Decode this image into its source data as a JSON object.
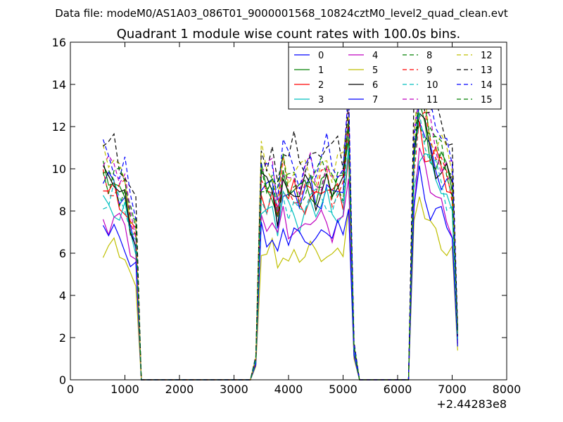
{
  "supertitle": "Data file: modeM0/AS1A03_086T01_9000001568_10824cztM0_level2_quad_clean.evt",
  "chart_data": {
    "type": "line",
    "title": "Quadrant 1 module wise count rates with 100.0s bins.",
    "xlabel": "",
    "ylabel": "",
    "x_offset_label": "+2.44283e8",
    "xlim": [
      0,
      8000
    ],
    "ylim": [
      0,
      16
    ],
    "x_ticks": [
      "0",
      "1000",
      "2000",
      "3000",
      "4000",
      "5000",
      "6000",
      "7000",
      "8000"
    ],
    "y_ticks": [
      "0",
      "2",
      "4",
      "6",
      "8",
      "10",
      "12",
      "14",
      "16"
    ],
    "grid": false,
    "legend_position": "top-right",
    "x": [
      600,
      700,
      800,
      900,
      1000,
      1100,
      1200,
      1300,
      1400,
      1500,
      1600,
      1700,
      1800,
      1900,
      2000,
      2100,
      2200,
      2300,
      2400,
      2500,
      2600,
      2700,
      2800,
      2900,
      3000,
      3100,
      3200,
      3300,
      3400,
      3500,
      3600,
      3700,
      3800,
      3900,
      4000,
      4100,
      4200,
      4300,
      4400,
      4500,
      4600,
      4700,
      4800,
      4900,
      5000,
      5100,
      5200,
      5300,
      5400,
      5500,
      5600,
      5700,
      5800,
      5900,
      6000,
      6100,
      6200,
      6300,
      6400,
      6500,
      6600,
      6700,
      6800,
      6900,
      7000,
      7100
    ],
    "series": [
      {
        "name": "0",
        "color": "#0000ff",
        "dash": "solid",
        "level": 9.3
      },
      {
        "name": "1",
        "color": "#008000",
        "dash": "solid",
        "level": 9.6
      },
      {
        "name": "2",
        "color": "#ff0000",
        "dash": "solid",
        "level": 9.2
      },
      {
        "name": "3",
        "color": "#00bfbf",
        "dash": "solid",
        "level": 8.5
      },
      {
        "name": "4",
        "color": "#bf00bf",
        "dash": "solid",
        "level": 7.8
      },
      {
        "name": "5",
        "color": "#bfbf00",
        "dash": "solid",
        "level": 6.3
      },
      {
        "name": "6",
        "color": "#000000",
        "dash": "solid",
        "level": 9.5
      },
      {
        "name": "7",
        "color": "#0000ff",
        "dash": "solid",
        "level": 7.2
      },
      {
        "name": "8",
        "color": "#008000",
        "dash": "dashed",
        "level": 9.8
      },
      {
        "name": "9",
        "color": "#ff0000",
        "dash": "dashed",
        "level": 9.6
      },
      {
        "name": "10",
        "color": "#00bfbf",
        "dash": "dashed",
        "level": 8.9
      },
      {
        "name": "11",
        "color": "#bf00bf",
        "dash": "dashed",
        "level": 10.2
      },
      {
        "name": "12",
        "color": "#bfbf00",
        "dash": "dashed",
        "level": 10.5
      },
      {
        "name": "13",
        "color": "#000000",
        "dash": "dashed",
        "level": 11.3
      },
      {
        "name": "14",
        "color": "#0000ff",
        "dash": "dashed",
        "level": 10.8
      },
      {
        "name": "15",
        "color": "#008000",
        "dash": "dashed",
        "level": 10.1
      }
    ],
    "profile": [
      1.0,
      0.97,
      0.99,
      0.93,
      0.92,
      0.78,
      0.72,
      0.0,
      0.0,
      0.0,
      0.0,
      0.0,
      0.0,
      0.0,
      0.0,
      0.0,
      0.0,
      0.0,
      0.0,
      0.0,
      0.0,
      0.0,
      0.0,
      0.0,
      0.0,
      0.0,
      0.0,
      0.0,
      0.1,
      0.98,
      0.93,
      0.97,
      0.83,
      1.0,
      0.92,
      0.95,
      0.9,
      0.94,
      0.97,
      0.93,
      0.96,
      0.99,
      0.92,
      0.97,
      0.95,
      1.24,
      0.16,
      0.0,
      0.0,
      0.0,
      0.0,
      0.0,
      0.0,
      0.0,
      0.0,
      0.0,
      0.0,
      1.12,
      1.34,
      1.24,
      1.16,
      1.11,
      1.06,
      1.0,
      0.95,
      0.22
    ]
  }
}
